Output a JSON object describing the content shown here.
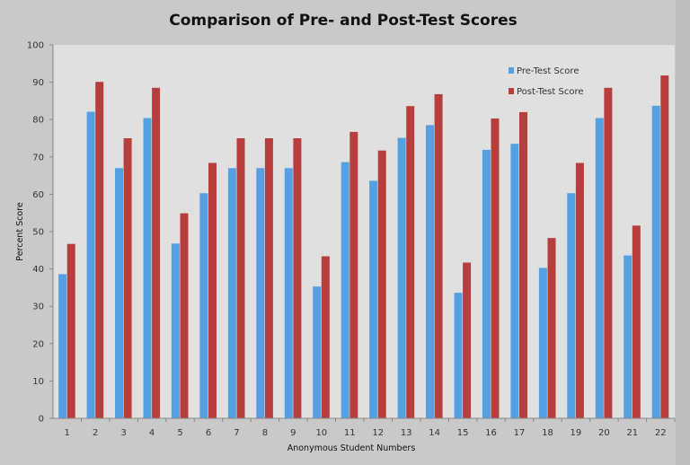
{
  "chart_data": {
    "type": "bar",
    "title": "Comparison of Pre- and Post-Test Scores",
    "xlabel": "Anonymous Student Numbers",
    "ylabel": "Percent Score",
    "ylim": [
      0,
      100
    ],
    "yticks": [
      0,
      10,
      20,
      30,
      40,
      50,
      60,
      70,
      80,
      90,
      100
    ],
    "grid": false,
    "legend_position": "top-right",
    "categories": [
      "1",
      "2",
      "3",
      "4",
      "5",
      "6",
      "7",
      "8",
      "9",
      "10",
      "11",
      "12",
      "13",
      "14",
      "15",
      "16",
      "17",
      "18",
      "19",
      "20",
      "21",
      "22"
    ],
    "series": [
      {
        "name": "Pre-Test Score",
        "color": "#559fe3",
        "values": [
          38.6,
          82.1,
          67,
          80.4,
          46.8,
          60.3,
          67,
          67,
          67,
          35.3,
          68.6,
          63.6,
          75.1,
          78.5,
          33.6,
          71.9,
          73.5,
          40.3,
          60.3,
          80.4,
          43.6,
          83.7
        ]
      },
      {
        "name": "Post-Test Score",
        "color": "#b63f3d",
        "values": [
          46.7,
          90.1,
          75,
          88.5,
          54.9,
          68.4,
          75,
          75,
          75,
          43.4,
          76.7,
          71.7,
          83.6,
          86.8,
          41.7,
          80.3,
          82,
          48.3,
          68.4,
          88.5,
          51.6,
          91.8
        ]
      }
    ]
  }
}
